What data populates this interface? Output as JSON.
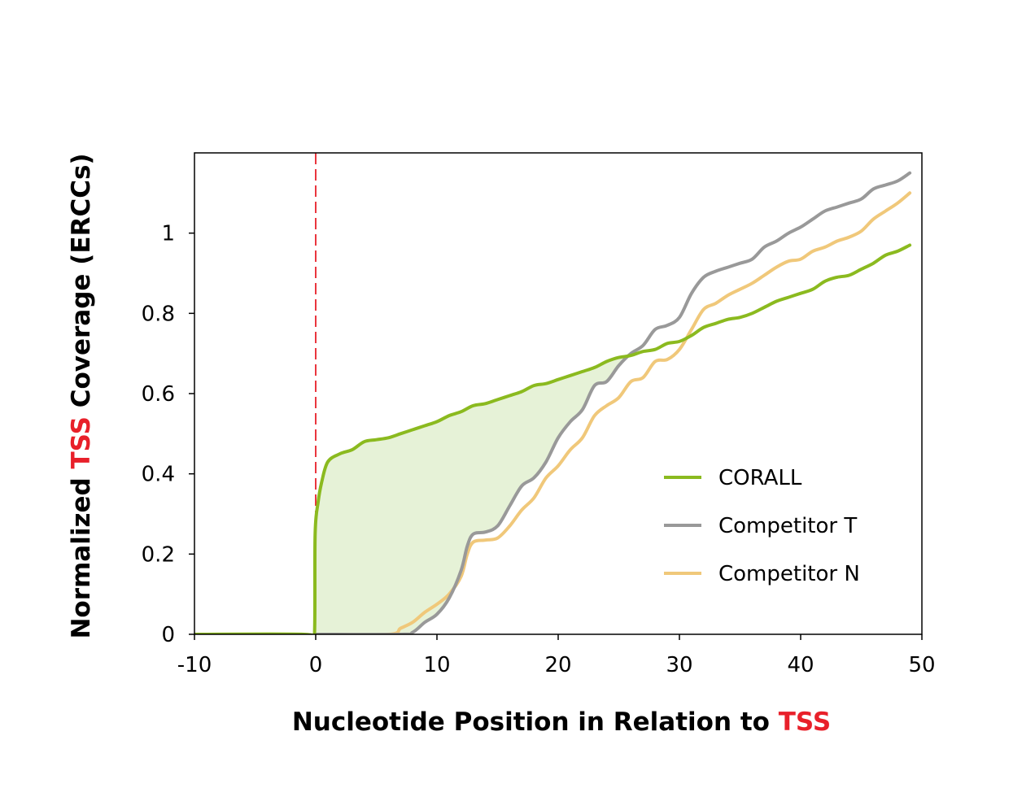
{
  "chart_data": {
    "type": "line",
    "xlabel_parts": [
      "Nucleotide Position in Relation to ",
      "TSS"
    ],
    "ylabel_parts": [
      "Normalized ",
      "TSS",
      " Coverage (ERCCs)"
    ],
    "highlight_color": "#e8202a",
    "xlim": [
      -10,
      50
    ],
    "ylim": [
      0,
      1.2
    ],
    "x_ticks": [
      -10,
      0,
      10,
      20,
      30,
      40,
      50
    ],
    "x_tick_labels": [
      "-10",
      "0",
      "10",
      "20",
      "30",
      "40",
      "50"
    ],
    "y_ticks": [
      0,
      0.2,
      0.4,
      0.6,
      0.8,
      1
    ],
    "y_tick_labels": [
      "0",
      "0.2",
      "0.4",
      "0.6",
      "0.8",
      "1"
    ],
    "reference_line": {
      "x": 0,
      "style": "dashed",
      "color": "#e8202a"
    },
    "shaded_region": {
      "between": [
        "CORALL",
        "Competitor T"
      ],
      "color": "#e6f2d7"
    },
    "legend": {
      "position": "bottom-right"
    },
    "series": [
      {
        "name": "CORALL",
        "color": "#8bba1f",
        "points": [
          [
            -10,
            0
          ],
          [
            -1,
            0
          ],
          [
            -0.5,
            -0.01
          ],
          [
            -0.1,
            0
          ],
          [
            -0.05,
            0.25
          ],
          [
            0.2,
            0.33
          ],
          [
            0.5,
            0.38
          ],
          [
            1,
            0.43
          ],
          [
            2,
            0.45
          ],
          [
            3,
            0.46
          ],
          [
            4,
            0.48
          ],
          [
            5,
            0.485
          ],
          [
            6,
            0.49
          ],
          [
            7,
            0.5
          ],
          [
            8,
            0.51
          ],
          [
            9,
            0.52
          ],
          [
            10,
            0.53
          ],
          [
            11,
            0.545
          ],
          [
            12,
            0.555
          ],
          [
            13,
            0.57
          ],
          [
            14,
            0.575
          ],
          [
            15,
            0.585
          ],
          [
            16,
            0.595
          ],
          [
            17,
            0.605
          ],
          [
            18,
            0.62
          ],
          [
            19,
            0.625
          ],
          [
            20,
            0.635
          ],
          [
            21,
            0.645
          ],
          [
            22,
            0.655
          ],
          [
            23,
            0.665
          ],
          [
            24,
            0.68
          ],
          [
            25,
            0.69
          ],
          [
            26,
            0.695
          ],
          [
            27,
            0.705
          ],
          [
            28,
            0.71
          ],
          [
            29,
            0.725
          ],
          [
            30,
            0.73
          ],
          [
            31,
            0.745
          ],
          [
            32,
            0.765
          ],
          [
            33,
            0.775
          ],
          [
            34,
            0.785
          ],
          [
            35,
            0.79
          ],
          [
            36,
            0.8
          ],
          [
            37,
            0.815
          ],
          [
            38,
            0.83
          ],
          [
            39,
            0.84
          ],
          [
            40,
            0.85
          ],
          [
            41,
            0.86
          ],
          [
            42,
            0.88
          ],
          [
            43,
            0.89
          ],
          [
            44,
            0.895
          ],
          [
            45,
            0.91
          ],
          [
            46,
            0.925
          ],
          [
            47,
            0.945
          ],
          [
            48,
            0.955
          ],
          [
            49,
            0.97
          ]
        ]
      },
      {
        "name": "Competitor T",
        "color": "#999999",
        "points": [
          [
            0,
            0
          ],
          [
            7,
            0
          ],
          [
            8,
            0.005
          ],
          [
            9,
            0.03
          ],
          [
            10,
            0.05
          ],
          [
            11,
            0.09
          ],
          [
            12,
            0.16
          ],
          [
            12.5,
            0.22
          ],
          [
            13,
            0.25
          ],
          [
            14,
            0.255
          ],
          [
            15,
            0.27
          ],
          [
            16,
            0.32
          ],
          [
            17,
            0.37
          ],
          [
            18,
            0.39
          ],
          [
            19,
            0.43
          ],
          [
            20,
            0.49
          ],
          [
            21,
            0.53
          ],
          [
            22,
            0.56
          ],
          [
            23,
            0.62
          ],
          [
            24,
            0.63
          ],
          [
            25,
            0.67
          ],
          [
            26,
            0.7
          ],
          [
            27,
            0.72
          ],
          [
            28,
            0.76
          ],
          [
            29,
            0.77
          ],
          [
            30,
            0.79
          ],
          [
            31,
            0.85
          ],
          [
            32,
            0.89
          ],
          [
            33,
            0.905
          ],
          [
            34,
            0.915
          ],
          [
            35,
            0.925
          ],
          [
            36,
            0.935
          ],
          [
            37,
            0.965
          ],
          [
            38,
            0.98
          ],
          [
            39,
            1.0
          ],
          [
            40,
            1.015
          ],
          [
            41,
            1.035
          ],
          [
            42,
            1.055
          ],
          [
            43,
            1.065
          ],
          [
            44,
            1.075
          ],
          [
            45,
            1.085
          ],
          [
            46,
            1.11
          ],
          [
            47,
            1.12
          ],
          [
            48,
            1.13
          ],
          [
            49,
            1.15
          ]
        ]
      },
      {
        "name": "Competitor N",
        "color": "#f0c87a",
        "points": [
          [
            0,
            0
          ],
          [
            6,
            0
          ],
          [
            7,
            0.015
          ],
          [
            8,
            0.03
          ],
          [
            9,
            0.055
          ],
          [
            10,
            0.075
          ],
          [
            11,
            0.1
          ],
          [
            12,
            0.145
          ],
          [
            12.5,
            0.2
          ],
          [
            13,
            0.23
          ],
          [
            14,
            0.235
          ],
          [
            15,
            0.24
          ],
          [
            16,
            0.27
          ],
          [
            17,
            0.31
          ],
          [
            18,
            0.34
          ],
          [
            19,
            0.39
          ],
          [
            20,
            0.42
          ],
          [
            21,
            0.46
          ],
          [
            22,
            0.49
          ],
          [
            23,
            0.545
          ],
          [
            24,
            0.57
          ],
          [
            25,
            0.59
          ],
          [
            26,
            0.63
          ],
          [
            27,
            0.64
          ],
          [
            28,
            0.68
          ],
          [
            29,
            0.685
          ],
          [
            30,
            0.71
          ],
          [
            31,
            0.76
          ],
          [
            32,
            0.81
          ],
          [
            33,
            0.825
          ],
          [
            34,
            0.845
          ],
          [
            35,
            0.86
          ],
          [
            36,
            0.875
          ],
          [
            37,
            0.895
          ],
          [
            38,
            0.915
          ],
          [
            39,
            0.93
          ],
          [
            40,
            0.935
          ],
          [
            41,
            0.955
          ],
          [
            42,
            0.965
          ],
          [
            43,
            0.98
          ],
          [
            44,
            0.99
          ],
          [
            45,
            1.005
          ],
          [
            46,
            1.035
          ],
          [
            47,
            1.055
          ],
          [
            48,
            1.075
          ],
          [
            49,
            1.1
          ]
        ]
      }
    ]
  }
}
